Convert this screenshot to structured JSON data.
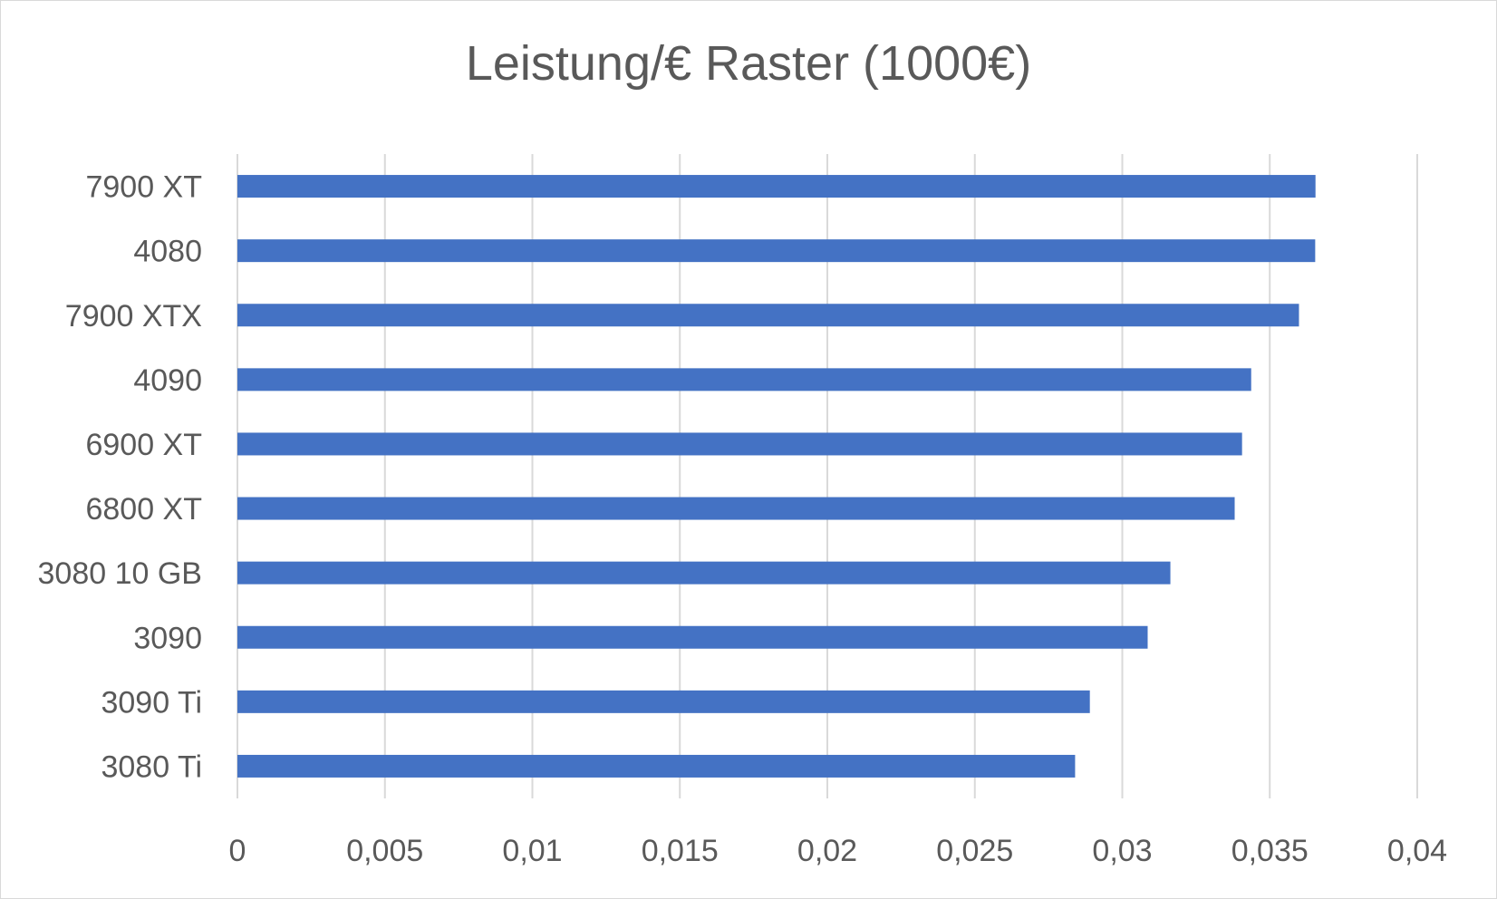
{
  "chart_data": {
    "type": "bar",
    "orientation": "horizontal",
    "title": "Leistung/€ Raster (1000€)",
    "categories": [
      "7900 XT",
      "4080",
      "7900 XTX",
      "4090",
      "6900 XT",
      "6800 XT",
      "3080 10 GB",
      "3090",
      "3090 Ti",
      "3080 Ti"
    ],
    "values": [
      0.03655,
      0.03654,
      0.03599,
      0.03437,
      0.03406,
      0.03381,
      0.03163,
      0.03086,
      0.0289,
      0.0284
    ],
    "xlim": [
      0,
      0.04
    ],
    "xticks": [
      "0",
      "0,005",
      "0,01",
      "0,015",
      "0,02",
      "0,025",
      "0,03",
      "0,035",
      "0,04"
    ],
    "xlabel": "",
    "ylabel": "",
    "grid": true,
    "legend": "none",
    "bar_color": "#4472C4",
    "grid_color": "#d9d9d9",
    "text_color": "#595959"
  }
}
